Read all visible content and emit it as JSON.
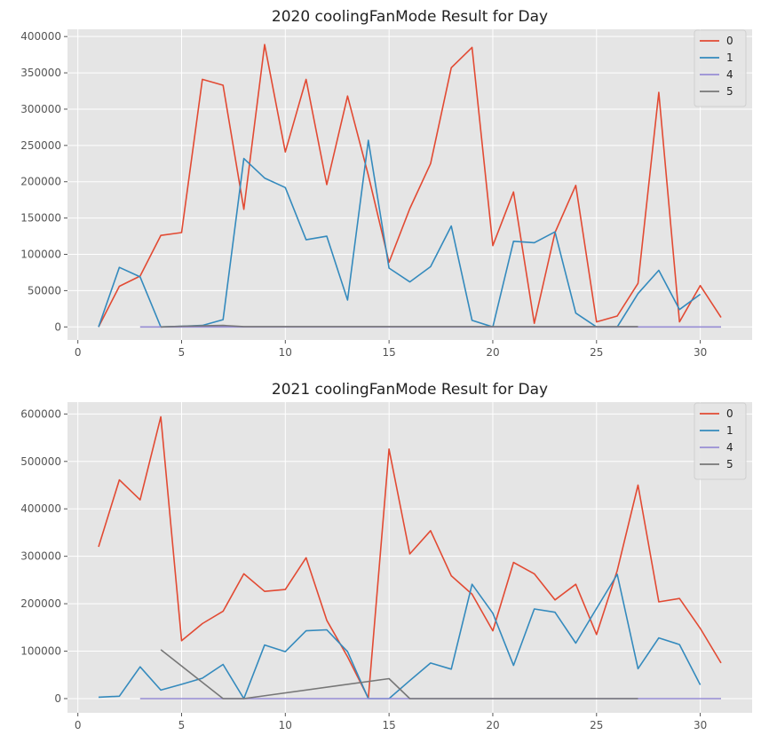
{
  "colors": {
    "background": "#ffffff",
    "plot_bg": "#e5e5e5",
    "grid": "#ffffff",
    "series": {
      "0": "#e24a33",
      "1": "#348abd",
      "4": "#988ed5",
      "5": "#777777"
    }
  },
  "chart_data": [
    {
      "type": "line",
      "title": "2020 coolingFanMode Result for Day",
      "xlabel": "",
      "ylabel": "",
      "xlim": [
        -0.5,
        32.5
      ],
      "ylim": [
        -18000,
        410000
      ],
      "xticks": [
        0,
        5,
        10,
        15,
        20,
        25,
        30
      ],
      "yticks": [
        0,
        50000,
        100000,
        150000,
        200000,
        250000,
        300000,
        350000,
        400000
      ],
      "grid": true,
      "legend": "top-right",
      "series": [
        {
          "name": "0",
          "color": "#e24a33",
          "x": [
            1,
            2,
            3,
            4,
            5,
            6,
            7,
            8,
            9,
            10,
            11,
            12,
            13,
            14,
            15,
            16,
            17,
            18,
            19,
            20,
            21,
            22,
            23,
            24,
            25,
            26,
            27,
            28,
            29,
            30,
            31
          ],
          "y": [
            0,
            56000,
            70000,
            126000,
            130000,
            341000,
            333000,
            162000,
            389000,
            241000,
            341000,
            196000,
            318000,
            209000,
            89000,
            163000,
            225000,
            357000,
            385000,
            112000,
            186000,
            5000,
            130000,
            195000,
            7000,
            15000,
            60000,
            323000,
            7000,
            57000,
            13000
          ]
        },
        {
          "name": "1",
          "color": "#348abd",
          "x": [
            1,
            2,
            3,
            4,
            5,
            6,
            7,
            8,
            9,
            10,
            11,
            12,
            13,
            14,
            15,
            16,
            17,
            18,
            19,
            20,
            21,
            22,
            23,
            24,
            25,
            26,
            27,
            28,
            29,
            30
          ],
          "y": [
            0,
            82000,
            69000,
            0,
            1000,
            2000,
            10000,
            232000,
            205000,
            192000,
            120000,
            125000,
            37000,
            257000,
            81000,
            62000,
            83000,
            139000,
            9000,
            0,
            118000,
            116000,
            131000,
            19000,
            0,
            0,
            46000,
            78000,
            24000,
            45000
          ]
        },
        {
          "name": "4",
          "color": "#988ed5",
          "x": [
            3,
            4,
            5,
            6,
            7,
            8,
            9,
            10,
            11,
            12,
            13,
            14,
            15,
            16,
            17,
            18,
            19,
            20,
            21,
            22,
            23,
            24,
            25,
            26,
            27,
            28,
            29,
            30,
            31
          ],
          "y": [
            0,
            0,
            0,
            0,
            0,
            0,
            0,
            0,
            0,
            0,
            0,
            0,
            0,
            0,
            0,
            0,
            0,
            0,
            0,
            0,
            0,
            0,
            0,
            0,
            0,
            0,
            0,
            0,
            0
          ]
        },
        {
          "name": "5",
          "color": "#777777",
          "x": [
            4,
            5,
            6,
            7,
            8,
            9,
            10,
            11,
            12,
            13,
            14,
            15,
            16,
            17,
            18,
            19,
            20,
            21,
            22,
            23,
            24,
            25,
            26,
            27
          ],
          "y": [
            0,
            1000,
            1500,
            2000,
            500,
            500,
            500,
            500,
            500,
            500,
            500,
            500,
            500,
            500,
            500,
            500,
            500,
            500,
            500,
            500,
            500,
            500,
            500,
            500
          ]
        }
      ]
    },
    {
      "type": "line",
      "title": "2021 coolingFanMode Result for Day",
      "xlabel": "",
      "ylabel": "",
      "xlim": [
        -0.5,
        32.5
      ],
      "ylim": [
        -30000,
        625000
      ],
      "xticks": [
        0,
        5,
        10,
        15,
        20,
        25,
        30
      ],
      "yticks": [
        0,
        100000,
        200000,
        300000,
        400000,
        500000,
        600000
      ],
      "grid": true,
      "legend": "top-right",
      "series": [
        {
          "name": "0",
          "color": "#e24a33",
          "x": [
            1,
            2,
            3,
            4,
            5,
            6,
            7,
            8,
            9,
            10,
            11,
            12,
            13,
            14,
            15,
            16,
            17,
            18,
            19,
            20,
            21,
            22,
            23,
            24,
            25,
            26,
            27,
            28,
            29,
            30,
            31
          ],
          "y": [
            320000,
            461000,
            419000,
            594000,
            122000,
            158000,
            184000,
            263000,
            226000,
            230000,
            297000,
            165000,
            88000,
            1000,
            526000,
            305000,
            354000,
            259000,
            220000,
            143000,
            287000,
            263000,
            208000,
            241000,
            135000,
            270000,
            450000,
            204000,
            211000,
            148000,
            75000
          ]
        },
        {
          "name": "1",
          "color": "#348abd",
          "x": [
            1,
            2,
            3,
            4,
            5,
            6,
            7,
            8,
            9,
            10,
            11,
            12,
            13,
            14,
            15,
            16,
            17,
            18,
            19,
            20,
            21,
            22,
            23,
            24,
            25,
            26,
            27,
            28,
            29,
            30
          ],
          "y": [
            3000,
            5000,
            67000,
            18000,
            30000,
            43000,
            72000,
            0,
            113000,
            99000,
            143000,
            145000,
            99000,
            0,
            0,
            38000,
            75000,
            62000,
            241000,
            180000,
            70000,
            189000,
            182000,
            117000,
            190000,
            262000,
            63000,
            128000,
            114000,
            29000
          ]
        },
        {
          "name": "4",
          "color": "#988ed5",
          "x": [
            3,
            4,
            5,
            6,
            7,
            8,
            9,
            10,
            11,
            12,
            13,
            14,
            15,
            16,
            17,
            18,
            19,
            20,
            21,
            22,
            23,
            24,
            25,
            26,
            27,
            28,
            29,
            30,
            31
          ],
          "y": [
            0,
            0,
            0,
            0,
            0,
            0,
            0,
            0,
            0,
            0,
            0,
            0,
            0,
            0,
            0,
            0,
            0,
            0,
            0,
            0,
            0,
            0,
            0,
            0,
            0,
            0,
            0,
            0,
            0
          ]
        },
        {
          "name": "5",
          "color": "#777777",
          "x": [
            4,
            7,
            8,
            15,
            16,
            17,
            18,
            19,
            20,
            21,
            22,
            23,
            24,
            25,
            26,
            27
          ],
          "y": [
            103000,
            0,
            0,
            42000,
            0,
            0,
            0,
            0,
            0,
            0,
            0,
            0,
            0,
            0,
            0,
            0
          ]
        }
      ]
    }
  ]
}
